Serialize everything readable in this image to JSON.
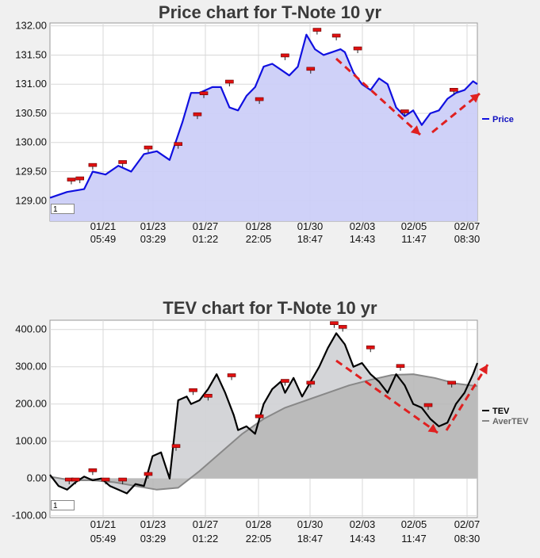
{
  "chart_data": [
    {
      "type": "area",
      "title": "Price chart for T-Note 10 yr",
      "xlabel": "",
      "ylabel": "",
      "ylim": [
        128.65,
        132.05
      ],
      "yticks": [
        "132.00",
        "131.50",
        "131.00",
        "130.50",
        "130.00",
        "129.50",
        "129.00"
      ],
      "ytick_values": [
        132.0,
        131.5,
        131.0,
        130.5,
        130.0,
        129.5,
        129.0
      ],
      "xticks": [
        {
          "date": "01/21",
          "time": "05:49"
        },
        {
          "date": "01/23",
          "time": "03:29"
        },
        {
          "date": "01/27",
          "time": "01:22"
        },
        {
          "date": "01/28",
          "time": "22:05"
        },
        {
          "date": "01/30",
          "time": "18:47"
        },
        {
          "date": "02/03",
          "time": "14:43"
        },
        {
          "date": "02/05",
          "time": "11:47"
        },
        {
          "date": "02/07",
          "time": "08:30"
        }
      ],
      "grid": true,
      "legend_position": "right",
      "zoom_value": "1",
      "series": [
        {
          "name": "Price",
          "color": "#1010e0",
          "fill": "#cccff8",
          "x": [
            0,
            0.04,
            0.08,
            0.1,
            0.13,
            0.16,
            0.19,
            0.22,
            0.25,
            0.28,
            0.31,
            0.33,
            0.35,
            0.38,
            0.4,
            0.42,
            0.44,
            0.46,
            0.48,
            0.5,
            0.52,
            0.54,
            0.56,
            0.58,
            0.6,
            0.62,
            0.64,
            0.66,
            0.68,
            0.69,
            0.71,
            0.73,
            0.75,
            0.77,
            0.79,
            0.81,
            0.83,
            0.85,
            0.87,
            0.89,
            0.91,
            0.93,
            0.95,
            0.97,
            0.99,
            1.0
          ],
          "values": [
            129.05,
            129.15,
            129.2,
            129.5,
            129.45,
            129.6,
            129.5,
            129.8,
            129.85,
            129.7,
            130.35,
            130.85,
            130.85,
            130.95,
            130.95,
            130.6,
            130.55,
            130.8,
            130.95,
            131.3,
            131.35,
            131.25,
            131.15,
            131.3,
            131.85,
            131.6,
            131.5,
            131.55,
            131.6,
            131.55,
            131.2,
            131.0,
            130.9,
            131.1,
            131.0,
            130.6,
            130.45,
            130.55,
            130.3,
            130.5,
            130.55,
            130.75,
            130.85,
            130.9,
            131.05,
            131.0
          ]
        }
      ],
      "markers": [
        0.05,
        0.07,
        0.1,
        0.17,
        0.23,
        0.3,
        0.345,
        0.36,
        0.42,
        0.49,
        0.55,
        0.61,
        0.625,
        0.67,
        0.72,
        0.83,
        0.945
      ],
      "marker_values": [
        129.35,
        129.37,
        129.6,
        129.65,
        129.9,
        129.96,
        130.47,
        130.83,
        131.03,
        130.73,
        131.48,
        131.25,
        131.92,
        131.82,
        131.6,
        130.52,
        130.89
      ]
    },
    {
      "type": "area",
      "title": "TEV chart for T-Note 10 yr",
      "xlabel": "",
      "ylabel": "",
      "ylim": [
        -105,
        425
      ],
      "yticks": [
        "400.00",
        "300.00",
        "200.00",
        "100.00",
        "0.00",
        "-100.00"
      ],
      "ytick_values": [
        400,
        300,
        200,
        100,
        0,
        -100
      ],
      "xticks": [
        {
          "date": "01/21",
          "time": "05:49"
        },
        {
          "date": "01/23",
          "time": "03:29"
        },
        {
          "date": "01/27",
          "time": "01:22"
        },
        {
          "date": "01/28",
          "time": "22:05"
        },
        {
          "date": "01/30",
          "time": "18:47"
        },
        {
          "date": "02/03",
          "time": "14:43"
        },
        {
          "date": "02/05",
          "time": "11:47"
        },
        {
          "date": "02/07",
          "time": "08:30"
        }
      ],
      "grid": true,
      "legend_position": "right",
      "zoom_value": "1",
      "series": [
        {
          "name": "TEV",
          "color": "#000000",
          "fill": "#d2d3d6",
          "x": [
            0,
            0.02,
            0.04,
            0.06,
            0.08,
            0.1,
            0.12,
            0.14,
            0.16,
            0.18,
            0.2,
            0.22,
            0.24,
            0.26,
            0.28,
            0.3,
            0.32,
            0.33,
            0.35,
            0.37,
            0.39,
            0.41,
            0.43,
            0.44,
            0.46,
            0.48,
            0.5,
            0.52,
            0.54,
            0.55,
            0.57,
            0.59,
            0.61,
            0.63,
            0.65,
            0.67,
            0.69,
            0.71,
            0.73,
            0.75,
            0.77,
            0.79,
            0.81,
            0.83,
            0.85,
            0.87,
            0.89,
            0.91,
            0.93,
            0.95,
            0.97,
            0.99,
            1.0
          ],
          "values": [
            10,
            -20,
            -30,
            -10,
            5,
            -5,
            0,
            -20,
            -30,
            -40,
            -15,
            -20,
            60,
            70,
            0,
            210,
            220,
            200,
            210,
            240,
            280,
            230,
            170,
            130,
            140,
            120,
            200,
            240,
            260,
            230,
            270,
            220,
            260,
            300,
            350,
            390,
            360,
            300,
            310,
            280,
            260,
            230,
            280,
            250,
            200,
            190,
            160,
            140,
            150,
            200,
            230,
            280,
            310
          ]
        },
        {
          "name": "AverTEV",
          "color": "#888888",
          "fill": "#b8b8b8",
          "x": [
            0,
            0.05,
            0.1,
            0.15,
            0.2,
            0.25,
            0.3,
            0.35,
            0.4,
            0.45,
            0.5,
            0.55,
            0.6,
            0.65,
            0.7,
            0.75,
            0.8,
            0.85,
            0.9,
            0.95,
            1.0
          ],
          "values": [
            5,
            -5,
            -5,
            -10,
            -20,
            -30,
            -25,
            20,
            70,
            120,
            160,
            190,
            210,
            230,
            250,
            265,
            278,
            280,
            270,
            255,
            248
          ]
        }
      ],
      "markers": [
        0.045,
        0.06,
        0.1,
        0.13,
        0.17,
        0.23,
        0.295,
        0.335,
        0.37,
        0.425,
        0.49,
        0.55,
        0.61,
        0.665,
        0.685,
        0.75,
        0.82,
        0.885,
        0.94
      ],
      "marker_values": [
        -5,
        -5,
        20,
        -5,
        -5,
        10,
        85,
        235,
        220,
        275,
        165,
        260,
        255,
        415,
        405,
        350,
        300,
        195,
        255
      ]
    }
  ],
  "annotations": {
    "arrow_color": "#e02020",
    "marker_color": "#e01010"
  }
}
